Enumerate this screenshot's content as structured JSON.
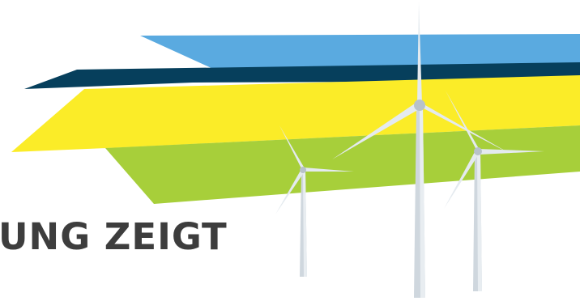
{
  "headline": {
    "text": "UNG ZEIGT",
    "color": "#3d3d3d"
  },
  "colors": {
    "stripe_blue": "#5aaae0",
    "stripe_navy": "#063f5c",
    "stripe_yellow": "#fbec28",
    "stripe_green": "#a7cf3a",
    "turbine_tower": "#cfd7de",
    "turbine_tower_shade": "#e8edf1",
    "turbine_blade": "#e4eaef",
    "turbine_hub": "#b8c2ca"
  },
  "icons": {
    "turbine": "wind-turbine-icon"
  }
}
